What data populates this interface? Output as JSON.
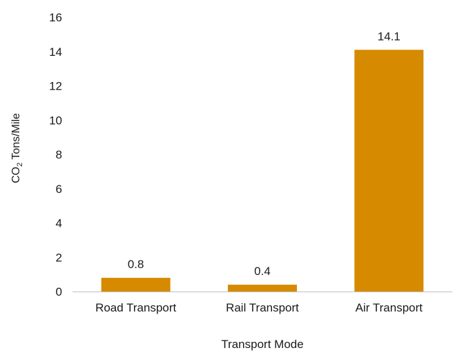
{
  "chart_data": {
    "type": "bar",
    "title": "",
    "xlabel": "Transport Mode",
    "ylabel": {
      "prefix": "CO",
      "subscript": "2",
      "suffix": " Tons/Mile"
    },
    "categories": [
      "Road Transport",
      "Rail Transport",
      "Air Transport"
    ],
    "values": [
      0.8,
      0.4,
      14.1
    ],
    "data_labels": [
      "0.8",
      "0.4",
      "14.1"
    ],
    "ylim": [
      0,
      16
    ],
    "yticks": [
      0,
      2,
      4,
      6,
      8,
      10,
      12,
      14,
      16
    ],
    "grid": false,
    "legend": "none",
    "bar_color": "#D68A00",
    "axis_color": "#bfbfbf"
  }
}
